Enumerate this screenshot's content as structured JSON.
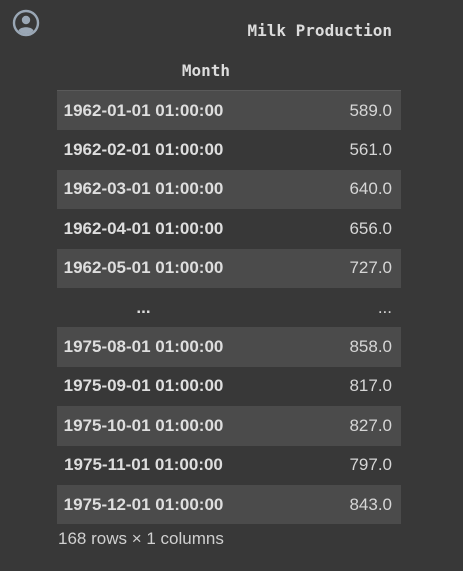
{
  "table": {
    "column_header": "Milk Production",
    "index_name": "Month",
    "rows": [
      {
        "index": "1962-01-01 01:00:00",
        "value": "589.0"
      },
      {
        "index": "1962-02-01 01:00:00",
        "value": "561.0"
      },
      {
        "index": "1962-03-01 01:00:00",
        "value": "640.0"
      },
      {
        "index": "1962-04-01 01:00:00",
        "value": "656.0"
      },
      {
        "index": "1962-05-01 01:00:00",
        "value": "727.0"
      },
      {
        "index": "...",
        "value": "..."
      },
      {
        "index": "1975-08-01 01:00:00",
        "value": "858.0"
      },
      {
        "index": "1975-09-01 01:00:00",
        "value": "817.0"
      },
      {
        "index": "1975-10-01 01:00:00",
        "value": "827.0"
      },
      {
        "index": "1975-11-01 01:00:00",
        "value": "797.0"
      },
      {
        "index": "1975-12-01 01:00:00",
        "value": "843.0"
      }
    ],
    "shape_text": "168 rows × 1 columns"
  },
  "icons": {
    "avatar": "user-avatar-icon"
  }
}
